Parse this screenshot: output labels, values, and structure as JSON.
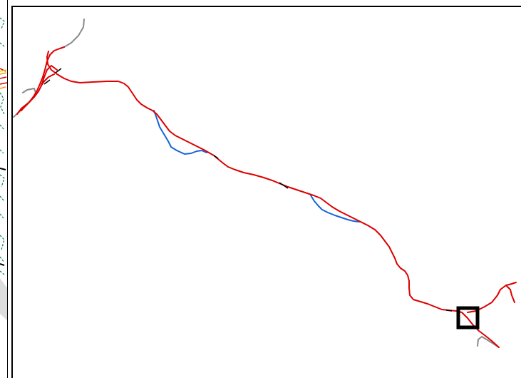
{
  "map": {
    "colors": {
      "main_route": "#dd0000",
      "alternate_route": "#1565d8",
      "connector": "#8a8a8a",
      "marker": "#000000",
      "frame": "#000000"
    },
    "icons": {
      "marker": "square-marker-icon"
    }
  },
  "inset": {
    "colors": {
      "route_red": "#dd0000",
      "route_orange": "#ff9900",
      "route_yellow": "#e8d000",
      "route_green": "#148a5c",
      "route_black": "#000000",
      "terrain_gray": "#dddddd"
    }
  }
}
